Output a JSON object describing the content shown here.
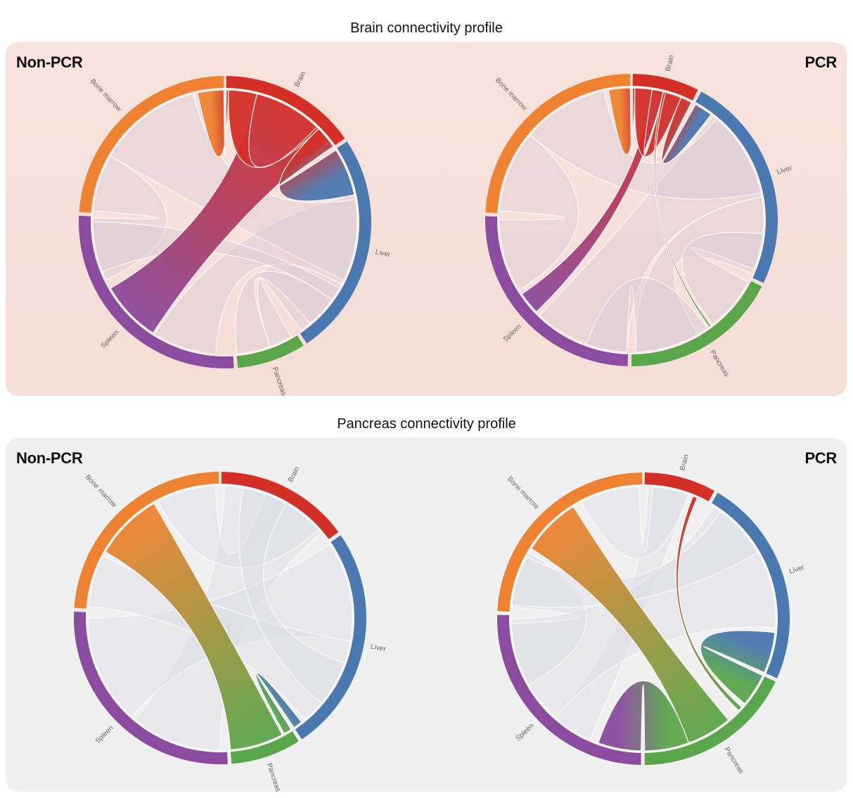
{
  "figure": {
    "sections": [
      {
        "title": "Brain connectivity profile",
        "theme": "brain",
        "charts": [
          {
            "label": "Non-PCR",
            "focus": "Brain",
            "segments": [
              {
                "name": "Brain",
                "start": 0.5,
                "end": 55
              },
              {
                "name": "Liver",
                "start": 56.5,
                "end": 146
              },
              {
                "name": "Pancreas",
                "start": 147.5,
                "end": 175
              },
              {
                "name": "Spleen",
                "start": 176.5,
                "end": 272.5
              },
              {
                "name": "Bone marrow",
                "start": 274,
                "end": 359.5
              }
            ],
            "highlight_chords": [
              {
                "from": "Brain",
                "to": "Spleen",
                "a": [
                  14,
                  52
                ],
                "b": [
                  213,
                  240
                ],
                "opacity": 0.95
              },
              {
                "from": "Brain",
                "to": "Liver",
                "a": [
                  45,
                  55
                ],
                "b": [
                  57,
                  78
                ],
                "opacity": 0.95
              },
              {
                "from": "Brain",
                "to": "Bone marrow",
                "a": [
                  0.5,
                  1.5
                ],
                "b": [
                  348,
                  359.5
                ],
                "opacity": 0.95
              },
              {
                "from": "Brain",
                "to": "Brain",
                "a": [
                  1.5,
                  14
                ],
                "b": [
                  44,
                  45
                ],
                "opacity": 0.95
              }
            ],
            "faint_chords": [
              {
                "a": [
                  78,
                  118
                ],
                "b": [
                  184,
                  212
                ]
              },
              {
                "a": [
                  118,
                  145
                ],
                "b": [
                  150,
                  160
                ]
              },
              {
                "a": [
                  160,
                  175
                ],
                "b": [
                  126,
                  140
                ]
              },
              {
                "a": [
                  275,
                  300
                ],
                "b": [
                  244,
                  272
                ]
              },
              {
                "a": [
                  300,
                  346
                ],
                "b": [
                  80,
                  116
                ]
              },
              {
                "a": [
                  248,
                  270
                ],
                "b": [
                  120,
                  126
                ]
              }
            ]
          },
          {
            "label": "PCR",
            "focus": "Brain",
            "segments": [
              {
                "name": "Brain",
                "start": 0.5,
                "end": 27
              },
              {
                "name": "Liver",
                "start": 28.5,
                "end": 115.5
              },
              {
                "name": "Pancreas",
                "start": 117,
                "end": 180
              },
              {
                "name": "Spleen",
                "start": 181.5,
                "end": 271.5
              },
              {
                "name": "Bone marrow",
                "start": 273,
                "end": 359.5
              }
            ],
            "highlight_chords": [
              {
                "from": "Brain",
                "to": "Spleen",
                "a": [
                  9,
                  14
                ],
                "b": [
                  226,
                  236
                ],
                "opacity": 0.95
              },
              {
                "from": "Brain",
                "to": "Liver",
                "a": [
                  22,
                  27
                ],
                "b": [
                  29,
                  37
                ],
                "opacity": 0.95
              },
              {
                "from": "Brain",
                "to": "Bone marrow",
                "a": [
                  0.5,
                  1.5
                ],
                "b": [
                  350,
                  359.5
                ],
                "opacity": 0.95
              },
              {
                "from": "Brain",
                "to": "Brain",
                "a": [
                  1.5,
                  9
                ],
                "b": [
                  14,
                  22
                ],
                "opacity": 0.95
              },
              {
                "from": "Brain",
                "to": "Pancreas",
                "a": [
                  14,
                  15
                ],
                "b": [
                  143,
                  144
                ],
                "opacity": 0.95
              }
            ],
            "faint_chords": [
              {
                "a": [
                  38,
                  80
                ],
                "b": [
                  182,
                  224
                ]
              },
              {
                "a": [
                  80,
                  114
                ],
                "b": [
                  150,
                  178
                ]
              },
              {
                "a": [
                  118,
                  142
                ],
                "b": [
                  96,
                  112
                ]
              },
              {
                "a": [
                  274,
                  310
                ],
                "b": [
                  238,
                  270
                ]
              },
              {
                "a": [
                  310,
                  348
                ],
                "b": [
                  40,
                  78
                ]
              },
              {
                "a": [
                  145,
                  178
                ],
                "b": [
                  182,
                  200
                ]
              }
            ]
          }
        ]
      },
      {
        "title": "Pancreas connectivity profile",
        "theme": "pancreas",
        "charts": [
          {
            "label": "Non-PCR",
            "focus": "Pancreas",
            "segments": [
              {
                "name": "Brain",
                "start": 0.5,
                "end": 54
              },
              {
                "name": "Liver",
                "start": 55.5,
                "end": 146
              },
              {
                "name": "Pancreas",
                "start": 147.5,
                "end": 175.5
              },
              {
                "name": "Spleen",
                "start": 177,
                "end": 272.5
              },
              {
                "name": "Bone marrow",
                "start": 274,
                "end": 359.5
              }
            ],
            "highlight_chords": [
              {
                "from": "Pancreas",
                "to": "Bone marrow",
                "a": [
                  152,
                  175.5
                ],
                "b": [
                  300,
                  330
                ],
                "opacity": 0.95
              },
              {
                "from": "Pancreas",
                "to": "Liver",
                "a": [
                  147.5,
                  151
                ],
                "b": [
                  142,
                  146
                ],
                "opacity": 0.95
              }
            ],
            "faint_chords": [
              {
                "a": [
                  2,
                  50
                ],
                "b": [
                  180,
                  220
                ]
              },
              {
                "a": [
                  56,
                  100
                ],
                "b": [
                  222,
                  270
                ]
              },
              {
                "a": [
                  100,
                  140
                ],
                "b": [
                  275,
                  298
                ]
              },
              {
                "a": [
                  332,
                  358
                ],
                "b": [
                  20,
                  48
                ]
              },
              {
                "a": [
                  10,
                  30
                ],
                "b": [
                  110,
                  130
                ]
              }
            ]
          },
          {
            "label": "PCR",
            "focus": "Pancreas",
            "segments": [
              {
                "name": "Brain",
                "start": 0.5,
                "end": 29
              },
              {
                "name": "Liver",
                "start": 30.5,
                "end": 114
              },
              {
                "name": "Pancreas",
                "start": 115.5,
                "end": 179.5
              },
              {
                "name": "Spleen",
                "start": 181,
                "end": 271.5
              },
              {
                "name": "Bone marrow",
                "start": 273,
                "end": 359.5
              }
            ],
            "highlight_chords": [
              {
                "from": "Pancreas",
                "to": "Bone marrow",
                "a": [
                  140,
                  160
                ],
                "b": [
                  302,
                  328
                ],
                "opacity": 0.95
              },
              {
                "from": "Pancreas",
                "to": "Liver",
                "a": [
                  115.5,
                  130
                ],
                "b": [
                  96,
                  114
                ],
                "opacity": 0.95
              },
              {
                "from": "Pancreas",
                "to": "Spleen",
                "a": [
                  160,
                  179.5
                ],
                "b": [
                  181,
                  200
                ],
                "opacity": 0.95
              },
              {
                "from": "Pancreas",
                "to": "Brain",
                "a": [
                  132,
                  134
                ],
                "b": [
                  22,
                  24
                ],
                "opacity": 0.95
              }
            ],
            "faint_chords": [
              {
                "a": [
                  2,
                  20
                ],
                "b": [
                  204,
                  222
                ]
              },
              {
                "a": [
                  32,
                  94
                ],
                "b": [
                  222,
                  270
                ]
              },
              {
                "a": [
                  275,
                  300
                ],
                "b": [
                  240,
                  268
                ]
              },
              {
                "a": [
                  332,
                  358
                ],
                "b": [
                  4,
                  20
                ]
              },
              {
                "a": [
                  36,
                  60
                ],
                "b": [
                  276,
                  298
                ]
              }
            ]
          }
        ]
      }
    ],
    "colors": {
      "Brain": "#d32f27",
      "Liver": "#4a78b1",
      "Pancreas": "#5aa64b",
      "Spleen": "#8b4b9e",
      "Bone marrow": "#ef8230"
    }
  },
  "chart_data": [
    {
      "type": "chord",
      "title": "Brain connectivity profile",
      "subtitle": "Non-PCR",
      "categories": [
        "Brain",
        "Liver",
        "Pancreas",
        "Spleen",
        "Bone marrow"
      ],
      "values_pct": [
        15.3,
        24.9,
        7.6,
        26.5,
        23.7
      ]
    },
    {
      "type": "chord",
      "title": "Brain connectivity profile",
      "subtitle": "PCR",
      "categories": [
        "Brain",
        "Liver",
        "Pancreas",
        "Spleen",
        "Bone marrow"
      ],
      "values_pct": [
        7.4,
        24.2,
        17.5,
        25.0,
        24.0
      ]
    },
    {
      "type": "chord",
      "title": "Pancreas connectivity profile",
      "subtitle": "Non-PCR",
      "categories": [
        "Brain",
        "Liver",
        "Pancreas",
        "Spleen",
        "Bone marrow"
      ],
      "values_pct": [
        14.9,
        25.1,
        7.8,
        26.5,
        23.7
      ]
    },
    {
      "type": "chord",
      "title": "Pancreas connectivity profile",
      "subtitle": "PCR",
      "categories": [
        "Brain",
        "Liver",
        "Pancreas",
        "Spleen",
        "Bone marrow"
      ],
      "values_pct": [
        7.9,
        23.2,
        17.6,
        25.1,
        24.0
      ]
    }
  ]
}
